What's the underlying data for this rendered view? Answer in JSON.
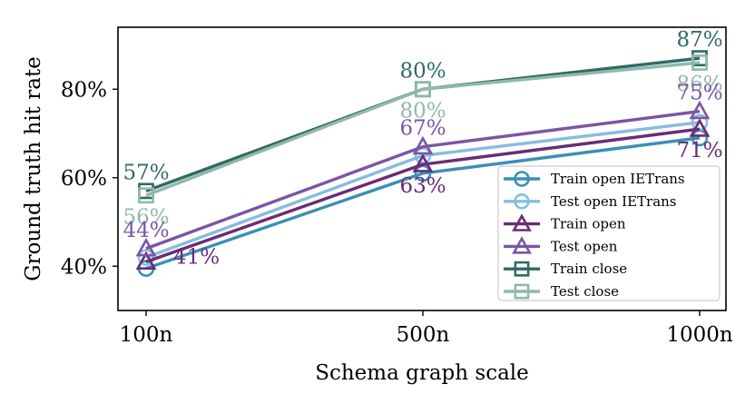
{
  "chart_data": {
    "type": "line",
    "xlabel": "Schema graph scale",
    "ylabel": "Ground truth hit rate",
    "categories": [
      "100n",
      "500n",
      "1000n"
    ],
    "y_ticks": [
      "40%",
      "60%",
      "80%"
    ],
    "y_tick_values": [
      40,
      60,
      80
    ],
    "ylim": [
      30,
      94
    ],
    "grid": false,
    "legend_position": "lower-right",
    "series": [
      {
        "name": "Train open IETrans",
        "values": [
          39.5,
          61,
          69
        ],
        "color": "#3a8fb7",
        "marker": "circle"
      },
      {
        "name": "Test open IETrans",
        "values": [
          42,
          65,
          72.5
        ],
        "color": "#86bde0",
        "marker": "circle"
      },
      {
        "name": "Train open",
        "values": [
          41,
          63,
          71
        ],
        "color": "#6a2c77",
        "marker": "triangle"
      },
      {
        "name": "Test open",
        "values": [
          44,
          67,
          75
        ],
        "color": "#7b55a6",
        "marker": "triangle"
      },
      {
        "name": "Train close",
        "values": [
          57,
          80,
          87
        ],
        "color": "#2f6b64",
        "marker": "square"
      },
      {
        "name": "Test close",
        "values": [
          56,
          80,
          86
        ],
        "color": "#8fb9ab",
        "marker": "square"
      }
    ],
    "data_labels": [
      {
        "text": "57%",
        "series": 4,
        "point": 0,
        "anchor": "above"
      },
      {
        "text": "56%",
        "series": 5,
        "point": 0,
        "anchor": "below"
      },
      {
        "text": "44%",
        "series": 3,
        "point": 0,
        "anchor": "above"
      },
      {
        "text": "41%",
        "series": 2,
        "point": 0,
        "anchor": "right"
      },
      {
        "text": "80%",
        "series": 4,
        "point": 1,
        "anchor": "above"
      },
      {
        "text": "80%",
        "series": 5,
        "point": 1,
        "anchor": "below"
      },
      {
        "text": "67%",
        "series": 3,
        "point": 1,
        "anchor": "above"
      },
      {
        "text": "63%",
        "series": 2,
        "point": 1,
        "anchor": "below"
      },
      {
        "text": "87%",
        "series": 4,
        "point": 2,
        "anchor": "above"
      },
      {
        "text": "86%",
        "series": 5,
        "point": 2,
        "anchor": "below"
      },
      {
        "text": "75%",
        "series": 3,
        "point": 2,
        "anchor": "above"
      },
      {
        "text": "71%",
        "series": 2,
        "point": 2,
        "anchor": "below"
      }
    ]
  }
}
